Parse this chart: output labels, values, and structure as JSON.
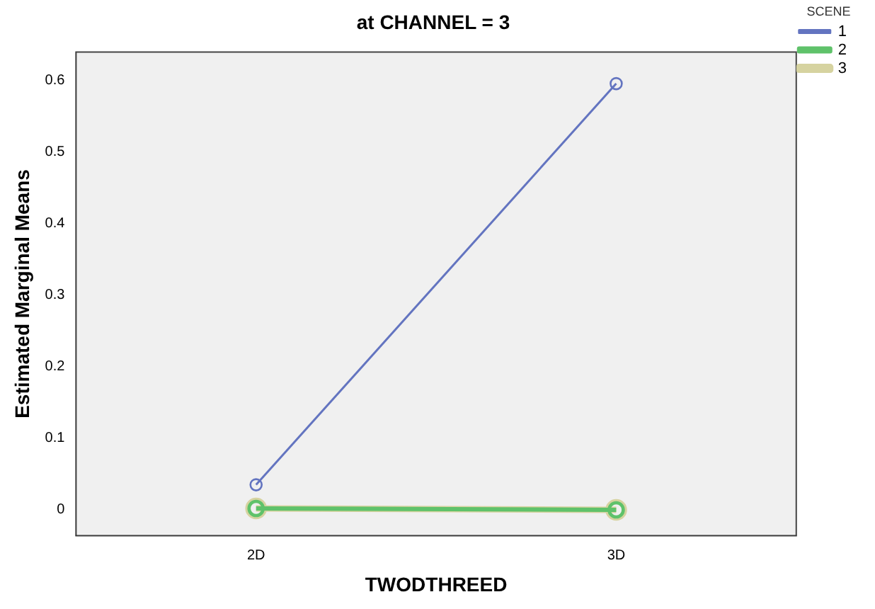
{
  "chart_data": {
    "type": "line",
    "title": "at CHANNEL = 3",
    "xlabel": "TWODTHREED",
    "ylabel": "Estimated Marginal Means",
    "legend_title": "SCENE",
    "categories": [
      "2D",
      "3D"
    ],
    "series": [
      {
        "name": "1",
        "color": "#6374c0",
        "values": [
          0.035,
          0.595
        ]
      },
      {
        "name": "2",
        "color": "#5fc26a",
        "values": [
          0.002,
          0
        ]
      },
      {
        "name": "3",
        "color": "#d6d3a0",
        "values": [
          0.002,
          0
        ]
      }
    ],
    "ylim": [
      -0.036,
      0.639
    ],
    "yticks": [
      0,
      0.1,
      0.2,
      0.3,
      0.4,
      0.5,
      0.6
    ],
    "grid": false,
    "legend": "right",
    "marker": "circle",
    "line_style": "solid"
  }
}
